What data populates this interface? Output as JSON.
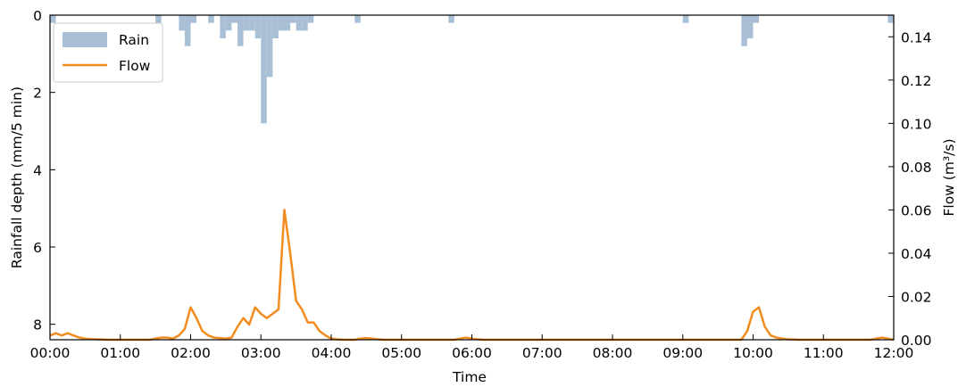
{
  "chart_data": {
    "type": "bar+line",
    "title": "",
    "xlabel": "Time",
    "ylabel_left": "Rainfall depth (mm/5 min)",
    "ylabel_right": "Flow (m³/s)",
    "x_ticks": [
      "00:00",
      "01:00",
      "02:00",
      "03:00",
      "04:00",
      "05:00",
      "06:00",
      "07:00",
      "08:00",
      "09:00",
      "10:00",
      "11:00",
      "12:00"
    ],
    "x_range_minutes": [
      0,
      720
    ],
    "y_left_ticks": [
      "0",
      "2",
      "4",
      "6",
      "8"
    ],
    "y_left_range": [
      0,
      8.4
    ],
    "y_left_inverted": true,
    "y_right_ticks": [
      "0.00",
      "0.02",
      "0.04",
      "0.06",
      "0.08",
      "0.10",
      "0.12",
      "0.14"
    ],
    "y_right_range": [
      0,
      0.15
    ],
    "legend_position": "top-left",
    "legend": [
      {
        "name": "Rain",
        "color": "#a9bfd6",
        "kind": "bar"
      },
      {
        "name": "Flow",
        "color": "#f28c1e",
        "kind": "line"
      }
    ],
    "series": [
      {
        "name": "Rain",
        "color": "#a9bfd6",
        "interval_minutes": 5,
        "start_minutes": [
          5,
          95,
          115,
          120,
          125,
          140,
          150,
          155,
          160,
          165,
          170,
          175,
          180,
          185,
          190,
          195,
          200,
          205,
          210,
          215,
          220,
          225,
          265,
          345,
          545,
          595,
          600,
          605,
          720
        ],
        "values": [
          0.2,
          0.2,
          0.4,
          0.8,
          0.2,
          0.2,
          0.6,
          0.4,
          0.2,
          0.8,
          0.4,
          0.4,
          0.6,
          2.8,
          1.6,
          0.6,
          0.4,
          0.4,
          0.2,
          0.4,
          0.4,
          0.2,
          0.2,
          0.2,
          0.2,
          0.8,
          0.6,
          0.2,
          0.2
        ]
      },
      {
        "name": "Flow",
        "color": "#f28c1e",
        "x_minutes": [
          0,
          5,
          10,
          15,
          20,
          25,
          30,
          35,
          40,
          45,
          50,
          55,
          60,
          65,
          70,
          75,
          80,
          85,
          90,
          95,
          100,
          105,
          110,
          115,
          120,
          125,
          130,
          135,
          140,
          145,
          150,
          155,
          160,
          165,
          170,
          175,
          180,
          185,
          190,
          195,
          200,
          205,
          210,
          215,
          220,
          225,
          230,
          235,
          240,
          245,
          250,
          255,
          260,
          265,
          270,
          275,
          280,
          285,
          290,
          295,
          300,
          305,
          310,
          315,
          320,
          325,
          330,
          335,
          340,
          345,
          350,
          355,
          360,
          365,
          370,
          375,
          380,
          385,
          390,
          395,
          400,
          405,
          410,
          415,
          420,
          480,
          540,
          590,
          595,
          600,
          605,
          610,
          615,
          620,
          625,
          630,
          640,
          660,
          700,
          705,
          710,
          715,
          720
        ],
        "y": [
          0.002,
          0.003,
          0.002,
          0.003,
          0.002,
          0.001,
          0.0005,
          0.0003,
          0.0002,
          0.0001,
          0,
          0,
          0,
          0,
          0,
          0,
          0,
          0,
          0.0005,
          0.001,
          0.001,
          0.0005,
          0.002,
          0.005,
          0.015,
          0.01,
          0.004,
          0.002,
          0.001,
          0.0008,
          0.0005,
          0.001,
          0.006,
          0.01,
          0.007,
          0.015,
          0.012,
          0.01,
          0.012,
          0.014,
          0.06,
          0.04,
          0.018,
          0.014,
          0.008,
          0.008,
          0.004,
          0.002,
          0.0005,
          0.0002,
          0,
          0,
          0,
          0.0005,
          0.0008,
          0.0005,
          0.0002,
          0,
          0,
          0,
          0,
          0,
          0,
          0,
          0,
          0,
          0,
          0,
          0,
          0,
          0.0005,
          0.001,
          0.0005,
          0.0002,
          0,
          0,
          0,
          0,
          0,
          0,
          0,
          0,
          0,
          0,
          0,
          0,
          0,
          0,
          0.004,
          0.013,
          0.015,
          0.006,
          0.002,
          0.001,
          0.0005,
          0.0002,
          0,
          0,
          0,
          0.0005,
          0.001,
          0.0005,
          0
        ]
      }
    ]
  }
}
